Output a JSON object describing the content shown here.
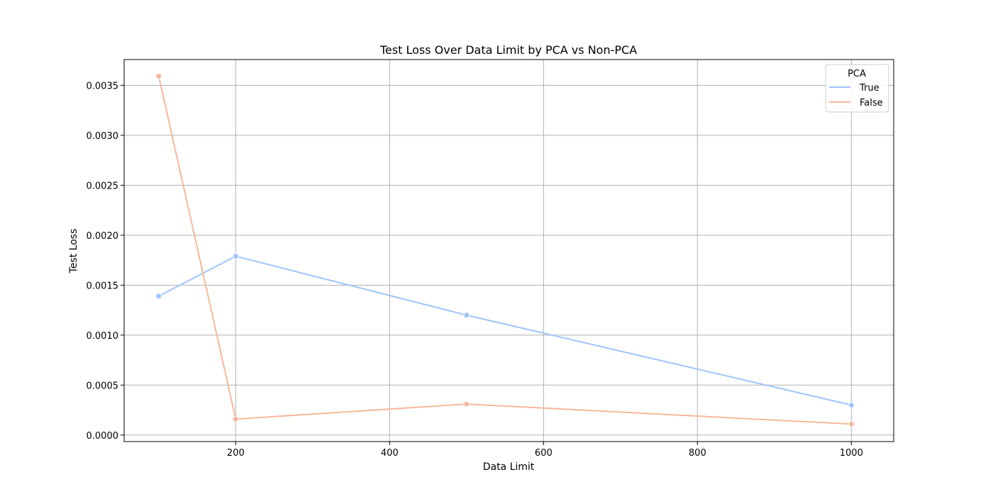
{
  "chart_data": {
    "type": "line",
    "title": "Test Loss Over Data Limit by PCA vs Non-PCA",
    "xlabel": "Data Limit",
    "ylabel": "Test Loss",
    "xlim": [
      55,
      1055
    ],
    "ylim": [
      -6.54e-05,
      0.003758
    ],
    "xticks": [
      200,
      400,
      600,
      800,
      1000
    ],
    "xtick_labels": [
      "200",
      "400",
      "600",
      "800",
      "1000"
    ],
    "yticks": [
      0.0,
      0.0005,
      0.001,
      0.0015,
      0.002,
      0.0025,
      0.003,
      0.0035
    ],
    "ytick_labels": [
      "0.0000",
      "0.0005",
      "0.0010",
      "0.0015",
      "0.0020",
      "0.0025",
      "0.0030",
      "0.0035"
    ],
    "grid": true,
    "legend": {
      "title": "PCA",
      "placement": "top-right"
    },
    "series": [
      {
        "name": "True",
        "color": "#a1c4fd",
        "x": [
          100,
          200,
          500,
          1000
        ],
        "y": [
          0.00139,
          0.00179,
          0.0012,
          0.0003
        ]
      },
      {
        "name": "False",
        "color": "#f6b89a",
        "x": [
          100,
          200,
          500,
          1000
        ],
        "y": [
          0.00359,
          0.00016,
          0.00031,
          0.00011
        ]
      }
    ]
  }
}
